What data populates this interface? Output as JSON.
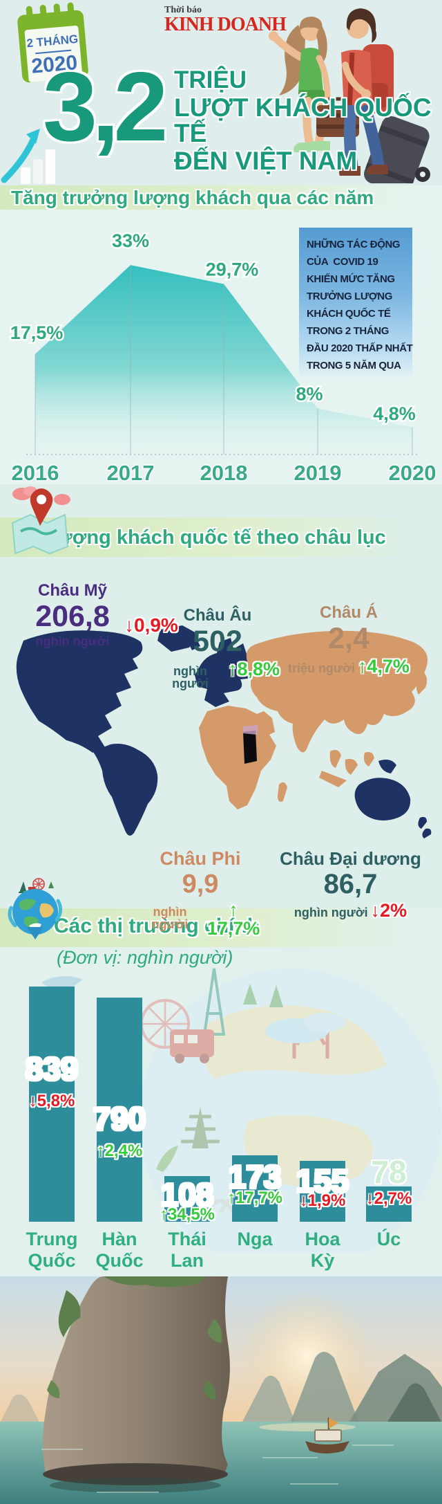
{
  "header": {
    "calendar": {
      "month": "2 THÁNG",
      "year": "2020"
    },
    "logo": {
      "top": "Thời báo",
      "main": "KINH DOANH"
    },
    "headline": {
      "number": "3,2",
      "line1": "TRIỆU",
      "line2": "LƯỢT KHÁCH QUỐC TẾ",
      "line3": "ĐẾN VIỆT NAM"
    }
  },
  "growth_section": {
    "title": "Tăng trưởng lượng khách qua các năm",
    "note_lines": [
      "NHỮNG TÁC ĐỘNG",
      "CỦA  COVID 19",
      "KHIẾN MỨC TĂNG",
      "TRƯỞNG LƯỢNG",
      "KHÁCH QUỐC TẾ",
      "TRONG 2 THÁNG",
      "ĐẦU 2020 THẤP NHẤT",
      "TRONG 5 NĂM QUA"
    ]
  },
  "continent_section": {
    "title": "Lượng khách quốc tế theo châu lục",
    "stats": [
      {
        "name": "Châu Mỹ",
        "value": "206,8",
        "unit": "nghìn người",
        "arrow": "↓",
        "change": "0,9%",
        "direction": "down",
        "color": "#4a2d7f"
      },
      {
        "name": "Châu Âu",
        "value": "502",
        "unit": "nghìn người",
        "arrow": "↑",
        "change": "8,8%",
        "direction": "up",
        "color": "#2d5f63"
      },
      {
        "name": "Châu Á",
        "value": "2,4",
        "unit": "triệu người",
        "arrow": "↑",
        "change": "4,7%",
        "direction": "up",
        "color": "#b08968"
      },
      {
        "name": "Châu Phi",
        "value": "9,9",
        "unit": "nghìn người",
        "arrow": "↑",
        "change": "17,7%",
        "direction": "up",
        "color": "#cd8a62"
      },
      {
        "name": "Châu Đại dương",
        "value": "86,7",
        "unit": "nghìn người",
        "arrow": "↓",
        "change": "2%",
        "direction": "down",
        "color": "#2d5f63"
      }
    ]
  },
  "markets_section": {
    "title": "Các thị trường chính",
    "subtitle": "(Đơn vị: nghìn người)",
    "bars": [
      {
        "label_lines": [
          "Trung",
          "Quốc"
        ],
        "value": "839",
        "arrow": "↓",
        "change": "5,8%",
        "direction": "down"
      },
      {
        "label_lines": [
          "Hàn",
          "Quốc"
        ],
        "value": "790",
        "arrow": "↑",
        "change": "2,4%",
        "direction": "up"
      },
      {
        "label_lines": [
          "Thái",
          "Lan"
        ],
        "value": "108",
        "arrow": "↑",
        "change": "34,5%",
        "direction": "up"
      },
      {
        "label_lines": [
          "Nga"
        ],
        "value": "173",
        "arrow": "↑",
        "change": "17,7%",
        "direction": "up"
      },
      {
        "label_lines": [
          "Hoa",
          "Kỳ"
        ],
        "value": "155",
        "arrow": "↓",
        "change": "1,9%",
        "direction": "down"
      },
      {
        "label_lines": [
          "Úc"
        ],
        "value": "78",
        "arrow": "↓",
        "change": "2,7%",
        "direction": "down"
      }
    ]
  },
  "chart_data": [
    {
      "type": "area",
      "title": "Tăng trưởng lượng khách qua các năm",
      "x": [
        "2016",
        "2017",
        "2018",
        "2019",
        "2020"
      ],
      "values": [
        17.5,
        33,
        29.7,
        8,
        4.8
      ],
      "labels": [
        "17,5%",
        "33%",
        "29,7%",
        "8%",
        "4,8%"
      ],
      "unit": "%",
      "ylim": [
        0,
        35
      ],
      "grid": "vertical-only",
      "legend": "none"
    },
    {
      "type": "bar",
      "title": "Các thị trường chính",
      "unit": "nghìn người",
      "categories": [
        "Trung Quốc",
        "Hàn Quốc",
        "Thái Lan",
        "Nga",
        "Hoa Kỳ",
        "Úc"
      ],
      "values": [
        839,
        790,
        108,
        173,
        155,
        78
      ],
      "changes": [
        "-5,8%",
        "+2,4%",
        "+34,5%",
        "+17,7%",
        "-1,9%",
        "-2,7%"
      ],
      "bar_color": "#2d8d9b",
      "legend": "none"
    },
    {
      "type": "table",
      "title": "Lượng khách quốc tế theo châu lục",
      "columns": [
        "continent",
        "visitors",
        "unit",
        "change"
      ],
      "rows": [
        [
          "Châu Mỹ",
          "206,8",
          "nghìn người",
          "-0,9%"
        ],
        [
          "Châu Âu",
          "502",
          "nghìn người",
          "+8,8%"
        ],
        [
          "Châu Á",
          "2,4",
          "triệu người",
          "+4,7%"
        ],
        [
          "Châu Phi",
          "9,9",
          "nghìn người",
          "+17,7%"
        ],
        [
          "Châu Đại dương",
          "86,7",
          "nghìn người",
          "-2%"
        ]
      ]
    }
  ],
  "colors": {
    "headline_green": "#18997b",
    "section_green": "#2faa7f",
    "area_teal": "#35bfbf",
    "bar_teal": "#2d8d9b",
    "up_green": "#35cb3a",
    "down_red": "#e31b23",
    "map_navy": "#1e3264",
    "map_tan": "#d49a6a",
    "note_box_blue": "#559bd2",
    "logo_red": "#d5271e"
  }
}
